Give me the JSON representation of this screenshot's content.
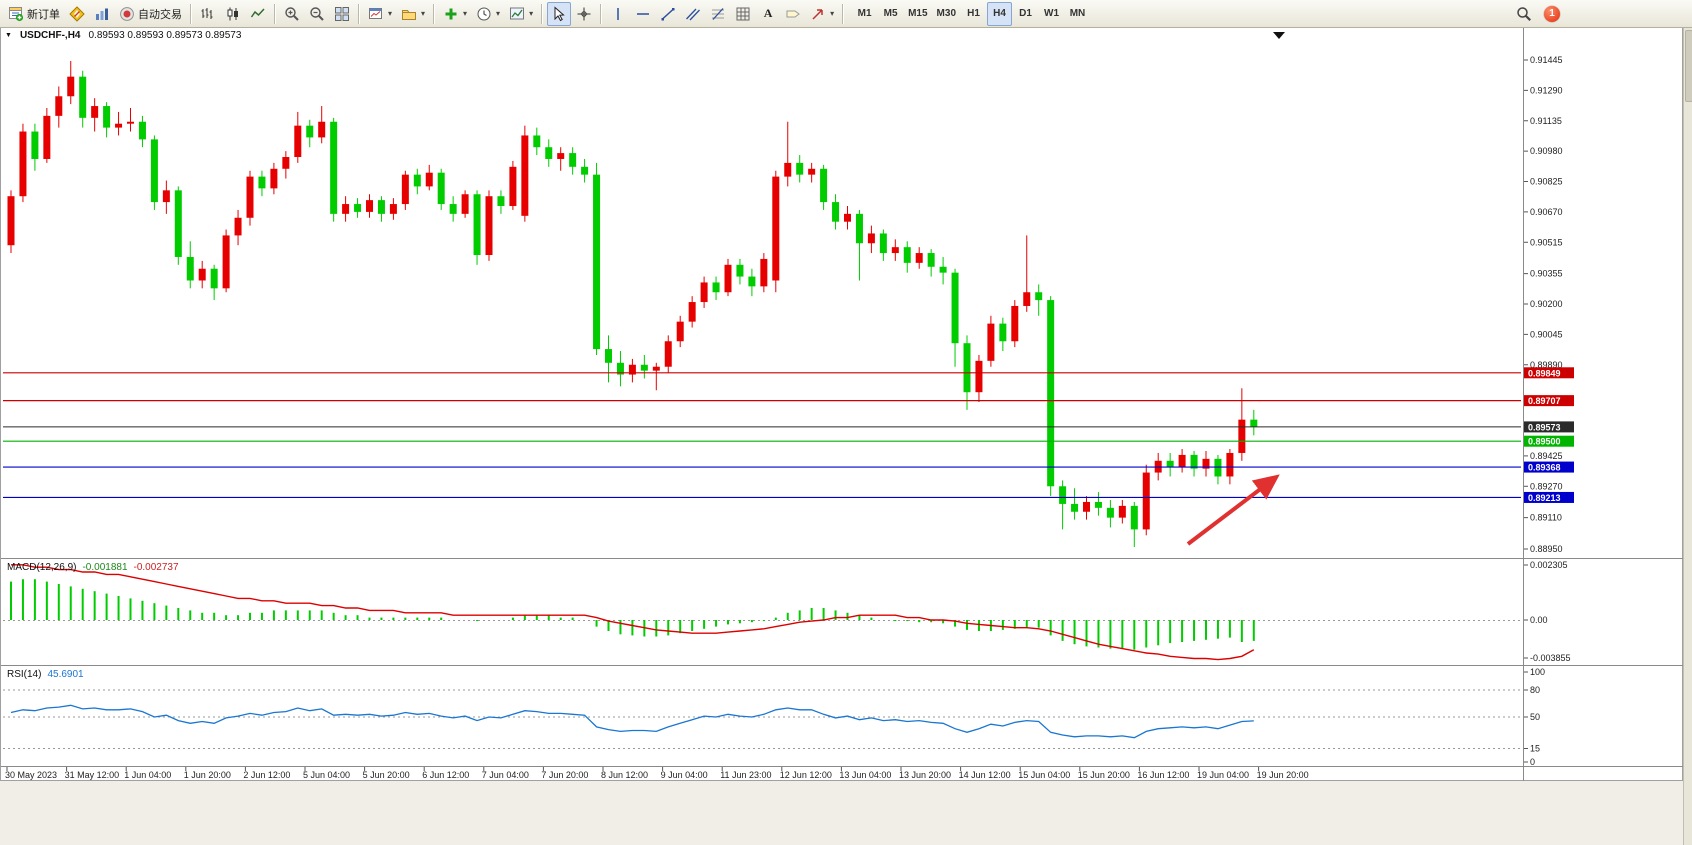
{
  "toolbar": {
    "new_order_label": "新订单",
    "autotrading_label": "自动交易",
    "timeframes": [
      "M1",
      "M5",
      "M15",
      "M30",
      "H1",
      "H4",
      "D1",
      "W1",
      "MN"
    ],
    "active_timeframe": "H4",
    "notification_badge": "1"
  },
  "chart_window": {
    "symbol_period": "USDCHF-,H4",
    "ohlc_text": "0.89593 0.89593 0.89573 0.89573"
  },
  "chart_data": {
    "type": "candlestick",
    "symbol": "USDCHF",
    "period": "H4",
    "bull_color": "#e60000",
    "bear_color": "#00cc00",
    "price_axis": {
      "ticks": [
        "0.91445",
        "0.91290",
        "0.91135",
        "0.90980",
        "0.90825",
        "0.90670",
        "0.90515",
        "0.90355",
        "0.90200",
        "0.90045",
        "0.89890",
        "0.89425",
        "0.89270",
        "0.89110",
        "0.88950"
      ]
    },
    "levels": [
      {
        "price": 0.89849,
        "label": "0.89849",
        "color": "#cc0000",
        "current": false
      },
      {
        "price": 0.89707,
        "label": "0.89707",
        "color": "#cc0000",
        "current": false
      },
      {
        "price": 0.89573,
        "label": "0.89573",
        "color": "#2a2a2a",
        "current": true
      },
      {
        "price": 0.895,
        "label": "0.89500",
        "color": "#00b400",
        "current": false
      },
      {
        "price": 0.89368,
        "label": "0.89368",
        "color": "#0000cc",
        "current": false
      },
      {
        "price": 0.89213,
        "label": "0.89213",
        "color": "#0000cc",
        "current": false
      }
    ],
    "candles": [
      [
        0.905,
        0.9078,
        0.9046,
        0.9075
      ],
      [
        0.9075,
        0.9112,
        0.9072,
        0.9108
      ],
      [
        0.9108,
        0.9112,
        0.9088,
        0.9094
      ],
      [
        0.9094,
        0.912,
        0.9092,
        0.9116
      ],
      [
        0.9116,
        0.9131,
        0.911,
        0.9126
      ],
      [
        0.9126,
        0.9144,
        0.9122,
        0.9136
      ],
      [
        0.9136,
        0.9139,
        0.911,
        0.9115
      ],
      [
        0.9115,
        0.9125,
        0.9108,
        0.9121
      ],
      [
        0.9121,
        0.9123,
        0.9105,
        0.911
      ],
      [
        0.911,
        0.9118,
        0.9106,
        0.9112
      ],
      [
        0.9112,
        0.912,
        0.9108,
        0.9113
      ],
      [
        0.9113,
        0.9116,
        0.91,
        0.9104
      ],
      [
        0.9104,
        0.9106,
        0.9068,
        0.9072
      ],
      [
        0.9072,
        0.9083,
        0.9066,
        0.9078
      ],
      [
        0.9078,
        0.908,
        0.904,
        0.9044
      ],
      [
        0.9044,
        0.9052,
        0.9028,
        0.9032
      ],
      [
        0.9032,
        0.9042,
        0.9028,
        0.9038
      ],
      [
        0.9038,
        0.904,
        0.9022,
        0.9028
      ],
      [
        0.9028,
        0.9058,
        0.9026,
        0.9055
      ],
      [
        0.9055,
        0.9068,
        0.905,
        0.9064
      ],
      [
        0.9064,
        0.9088,
        0.906,
        0.9085
      ],
      [
        0.9085,
        0.9088,
        0.9075,
        0.9079
      ],
      [
        0.9079,
        0.9092,
        0.9076,
        0.9089
      ],
      [
        0.9089,
        0.9098,
        0.9084,
        0.9095
      ],
      [
        0.9095,
        0.9118,
        0.9092,
        0.9111
      ],
      [
        0.9111,
        0.9114,
        0.91,
        0.9105
      ],
      [
        0.9105,
        0.9121,
        0.9102,
        0.9113
      ],
      [
        0.9113,
        0.9115,
        0.9062,
        0.9066
      ],
      [
        0.9066,
        0.9075,
        0.9062,
        0.9071
      ],
      [
        0.9071,
        0.9074,
        0.9064,
        0.9067
      ],
      [
        0.9067,
        0.9076,
        0.9064,
        0.9073
      ],
      [
        0.9073,
        0.9075,
        0.9062,
        0.9066
      ],
      [
        0.9066,
        0.9074,
        0.9063,
        0.9071
      ],
      [
        0.9071,
        0.9088,
        0.9068,
        0.9086
      ],
      [
        0.9086,
        0.9089,
        0.9076,
        0.908
      ],
      [
        0.908,
        0.9091,
        0.9078,
        0.9087
      ],
      [
        0.9087,
        0.9089,
        0.9068,
        0.9071
      ],
      [
        0.9071,
        0.9075,
        0.9062,
        0.9066
      ],
      [
        0.9066,
        0.9078,
        0.9064,
        0.9076
      ],
      [
        0.9076,
        0.9078,
        0.904,
        0.9045
      ],
      [
        0.9045,
        0.9078,
        0.9042,
        0.9075
      ],
      [
        0.9075,
        0.9078,
        0.9066,
        0.907
      ],
      [
        0.907,
        0.9093,
        0.9068,
        0.909
      ],
      [
        0.9065,
        0.9111,
        0.9062,
        0.9106
      ],
      [
        0.9106,
        0.911,
        0.9096,
        0.91
      ],
      [
        0.91,
        0.9104,
        0.909,
        0.9094
      ],
      [
        0.9094,
        0.91,
        0.9088,
        0.9097
      ],
      [
        0.9097,
        0.91,
        0.9086,
        0.909
      ],
      [
        0.909,
        0.9094,
        0.9082,
        0.9086
      ],
      [
        0.9086,
        0.9092,
        0.8994,
        0.8997
      ],
      [
        0.8997,
        0.9004,
        0.898,
        0.899
      ],
      [
        0.899,
        0.8996,
        0.8978,
        0.8984
      ],
      [
        0.8984,
        0.8992,
        0.898,
        0.8989
      ],
      [
        0.8989,
        0.8994,
        0.8982,
        0.8986
      ],
      [
        0.8986,
        0.899,
        0.8976,
        0.8988
      ],
      [
        0.8988,
        0.9004,
        0.8985,
        0.9001
      ],
      [
        0.9001,
        0.9014,
        0.8998,
        0.9011
      ],
      [
        0.9011,
        0.9024,
        0.9008,
        0.9021
      ],
      [
        0.9021,
        0.9034,
        0.9018,
        0.9031
      ],
      [
        0.9031,
        0.9034,
        0.9022,
        0.9026
      ],
      [
        0.9026,
        0.9043,
        0.9024,
        0.904
      ],
      [
        0.904,
        0.9043,
        0.903,
        0.9034
      ],
      [
        0.9034,
        0.9038,
        0.9024,
        0.9029
      ],
      [
        0.9029,
        0.9046,
        0.9026,
        0.9043
      ],
      [
        0.9032,
        0.9088,
        0.9026,
        0.9085
      ],
      [
        0.9085,
        0.9113,
        0.908,
        0.9092
      ],
      [
        0.9092,
        0.9096,
        0.9082,
        0.9086
      ],
      [
        0.9086,
        0.9092,
        0.9082,
        0.9089
      ],
      [
        0.9089,
        0.9091,
        0.9068,
        0.9072
      ],
      [
        0.9072,
        0.9076,
        0.9058,
        0.9062
      ],
      [
        0.9062,
        0.907,
        0.9058,
        0.9066
      ],
      [
        0.9066,
        0.9068,
        0.9032,
        0.9051
      ],
      [
        0.9051,
        0.906,
        0.9046,
        0.9056
      ],
      [
        0.9056,
        0.9058,
        0.9042,
        0.9046
      ],
      [
        0.9046,
        0.9053,
        0.9042,
        0.9049
      ],
      [
        0.9049,
        0.9052,
        0.9036,
        0.9041
      ],
      [
        0.9041,
        0.9049,
        0.9038,
        0.9046
      ],
      [
        0.9046,
        0.9048,
        0.9034,
        0.9039
      ],
      [
        0.9039,
        0.9044,
        0.903,
        0.9036
      ],
      [
        0.9036,
        0.9038,
        0.8988,
        0.9
      ],
      [
        0.9,
        0.9004,
        0.8966,
        0.8975
      ],
      [
        0.8975,
        0.8994,
        0.897,
        0.8991
      ],
      [
        0.8991,
        0.9014,
        0.8988,
        0.901
      ],
      [
        0.901,
        0.9013,
        0.8996,
        0.9001
      ],
      [
        0.9001,
        0.9022,
        0.8998,
        0.9019
      ],
      [
        0.9019,
        0.9055,
        0.9016,
        0.9026
      ],
      [
        0.9026,
        0.903,
        0.9014,
        0.9022
      ],
      [
        0.9022,
        0.9024,
        0.8922,
        0.8927
      ],
      [
        0.8927,
        0.893,
        0.8905,
        0.8918
      ],
      [
        0.8918,
        0.8926,
        0.891,
        0.8914
      ],
      [
        0.8914,
        0.8922,
        0.891,
        0.8919
      ],
      [
        0.8919,
        0.8924,
        0.8912,
        0.8916
      ],
      [
        0.8916,
        0.892,
        0.8906,
        0.8911
      ],
      [
        0.8911,
        0.892,
        0.8908,
        0.8917
      ],
      [
        0.8917,
        0.8919,
        0.8896,
        0.8905
      ],
      [
        0.8905,
        0.8938,
        0.8902,
        0.8934
      ],
      [
        0.8934,
        0.8944,
        0.893,
        0.894
      ],
      [
        0.894,
        0.8944,
        0.8932,
        0.8937
      ],
      [
        0.8937,
        0.8946,
        0.8934,
        0.8943
      ],
      [
        0.8943,
        0.8945,
        0.8932,
        0.8936
      ],
      [
        0.8936,
        0.8945,
        0.8932,
        0.8941
      ],
      [
        0.8941,
        0.8943,
        0.8928,
        0.8932
      ],
      [
        0.8932,
        0.8946,
        0.8928,
        0.8944
      ],
      [
        0.8944,
        0.8977,
        0.894,
        0.8961
      ],
      [
        0.8961,
        0.8966,
        0.8953,
        0.89573
      ]
    ],
    "time_labels": [
      "30 May 2023",
      "31 May 12:00",
      "1 Jun 04:00",
      "1 Jun 20:00",
      "2 Jun 12:00",
      "5 Jun 04:00",
      "5 Jun 20:00",
      "6 Jun 12:00",
      "7 Jun 04:00",
      "7 Jun 20:00",
      "8 Jun 12:00",
      "9 Jun 04:00",
      "11 Jun 23:00",
      "12 Jun 12:00",
      "13 Jun 04:00",
      "13 Jun 20:00",
      "14 Jun 12:00",
      "15 Jun 04:00",
      "15 Jun 20:00",
      "16 Jun 12:00",
      "19 Jun 04:00",
      "19 Jun 20:00"
    ],
    "macd": {
      "label": "MACD(12,26,9)",
      "value_main": "-0.001881",
      "value_signal": "-0.002737",
      "scale": [
        "0.002305",
        "0.00",
        "-0.003855"
      ],
      "hist_color": "#00cc00",
      "signal_color": "#dd0000",
      "histogram": [
        0.0016,
        0.0017,
        0.0017,
        0.0016,
        0.0015,
        0.0014,
        0.0013,
        0.0012,
        0.0011,
        0.001,
        0.0009,
        0.0008,
        0.0007,
        0.0006,
        0.0005,
        0.0004,
        0.0003,
        0.0003,
        0.0002,
        0.0002,
        0.0003,
        0.0003,
        0.0004,
        0.0004,
        0.0004,
        0.0004,
        0.0004,
        0.0003,
        0.0002,
        0.0002,
        0.0001,
        0.0001,
        0.0001,
        0.0001,
        0.0001,
        0.0001,
        0.0001,
        0.0,
        0.0,
        -0.0001,
        0.0,
        0.0,
        0.0001,
        0.0002,
        0.0002,
        0.0002,
        0.0001,
        0.0001,
        0.0,
        -0.0006,
        -0.001,
        -0.0013,
        -0.0014,
        -0.0015,
        -0.0015,
        -0.0014,
        -0.0012,
        -0.001,
        -0.0008,
        -0.0006,
        -0.0004,
        -0.0003,
        -0.0002,
        -0.0001,
        0.0001,
        0.0003,
        0.0004,
        0.0005,
        0.0005,
        0.0004,
        0.0003,
        0.0002,
        0.0001,
        0.0,
        -0.0001,
        -0.0001,
        -0.0002,
        -0.0002,
        -0.0003,
        -0.0006,
        -0.0009,
        -0.001,
        -0.001,
        -0.0009,
        -0.0008,
        -0.0007,
        -0.0007,
        -0.0014,
        -0.0019,
        -0.0022,
        -0.0024,
        -0.0025,
        -0.0026,
        -0.0026,
        -0.0027,
        -0.0025,
        -0.0023,
        -0.0021,
        -0.002,
        -0.0019,
        -0.0018,
        -0.0017,
        -0.0016,
        -0.002,
        -0.0019
      ],
      "signal": [
        0.0023,
        0.0023,
        0.0022,
        0.0022,
        0.0021,
        0.0021,
        0.002,
        0.002,
        0.0019,
        0.0019,
        0.0018,
        0.0017,
        0.0016,
        0.0015,
        0.0014,
        0.0013,
        0.0012,
        0.0011,
        0.001,
        0.0009,
        0.0009,
        0.0008,
        0.0008,
        0.0007,
        0.0007,
        0.0007,
        0.0006,
        0.0006,
        0.0005,
        0.0005,
        0.0004,
        0.0004,
        0.0004,
        0.0003,
        0.0003,
        0.0003,
        0.0003,
        0.0002,
        0.0002,
        0.0002,
        0.0002,
        0.0002,
        0.0002,
        0.0002,
        0.0002,
        0.0002,
        0.0002,
        0.0002,
        0.0002,
        0.0001,
        -0.0001,
        -0.0003,
        -0.0005,
        -0.0007,
        -0.0009,
        -0.001,
        -0.0011,
        -0.0012,
        -0.0012,
        -0.0012,
        -0.0011,
        -0.001,
        -0.0009,
        -0.0008,
        -0.0006,
        -0.0004,
        -0.0002,
        -0.0001,
        0.0,
        0.0001,
        0.0001,
        0.0002,
        0.0002,
        0.0002,
        0.0002,
        0.0001,
        0.0001,
        0.0,
        0.0,
        -0.0001,
        -0.0003,
        -0.0004,
        -0.0005,
        -0.0006,
        -0.0007,
        -0.0007,
        -0.0008,
        -0.001,
        -0.0013,
        -0.0016,
        -0.0019,
        -0.0022,
        -0.0024,
        -0.0026,
        -0.0028,
        -0.003,
        -0.0031,
        -0.0033,
        -0.0034,
        -0.0035,
        -0.0035,
        -0.0036,
        -0.0035,
        -0.0033,
        -0.0027
      ]
    },
    "rsi": {
      "label": "RSI(14)",
      "value_text": "45.6901",
      "line_color": "#1976d2",
      "scale": [
        "100",
        "80",
        "50",
        "15",
        "0"
      ],
      "levels": [
        80,
        50,
        15
      ],
      "values": [
        55,
        58,
        57,
        60,
        61,
        63,
        59,
        60,
        58,
        58,
        59,
        56,
        50,
        52,
        46,
        43,
        45,
        43,
        49,
        51,
        54,
        52,
        55,
        56,
        60,
        57,
        59,
        52,
        53,
        52,
        53,
        51,
        52,
        55,
        53,
        54,
        51,
        49,
        51,
        46,
        50,
        49,
        53,
        57,
        56,
        54,
        54,
        53,
        52,
        39,
        36,
        34,
        35,
        35,
        34,
        39,
        43,
        47,
        51,
        50,
        53,
        51,
        50,
        53,
        58,
        60,
        58,
        58,
        53,
        49,
        51,
        47,
        49,
        46,
        47,
        45,
        46,
        44,
        43,
        37,
        33,
        37,
        42,
        40,
        44,
        46,
        45,
        33,
        30,
        28,
        29,
        29,
        28,
        29,
        27,
        34,
        37,
        38,
        39,
        38,
        39,
        37,
        41,
        45,
        45.69
      ]
    },
    "annotation_arrow": {
      "color": "#e03030",
      "direction": "up-right"
    }
  }
}
